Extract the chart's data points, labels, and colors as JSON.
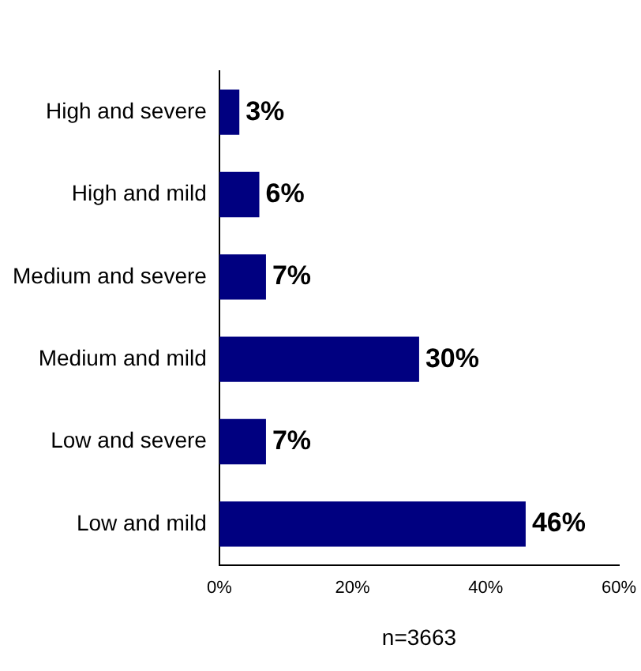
{
  "chart_data": {
    "type": "bar",
    "orientation": "horizontal",
    "xlabel": "n=3663",
    "categories": [
      "High and severe",
      "High and mild",
      "Medium and severe",
      "Medium and mild",
      "Low and severe",
      "Low and mild"
    ],
    "values": [
      3,
      6,
      7,
      30,
      7,
      46
    ],
    "value_labels": [
      "3%",
      "6%",
      "7%",
      "30%",
      "7%",
      "46%"
    ],
    "color": "#000080",
    "xlim": [
      0,
      60
    ],
    "xticks": [
      {
        "value": 0,
        "label": "0%"
      },
      {
        "value": 20,
        "label": "20%"
      },
      {
        "value": 40,
        "label": "40%"
      },
      {
        "value": 60,
        "label": "60%"
      }
    ],
    "grid": false,
    "legend": false
  }
}
